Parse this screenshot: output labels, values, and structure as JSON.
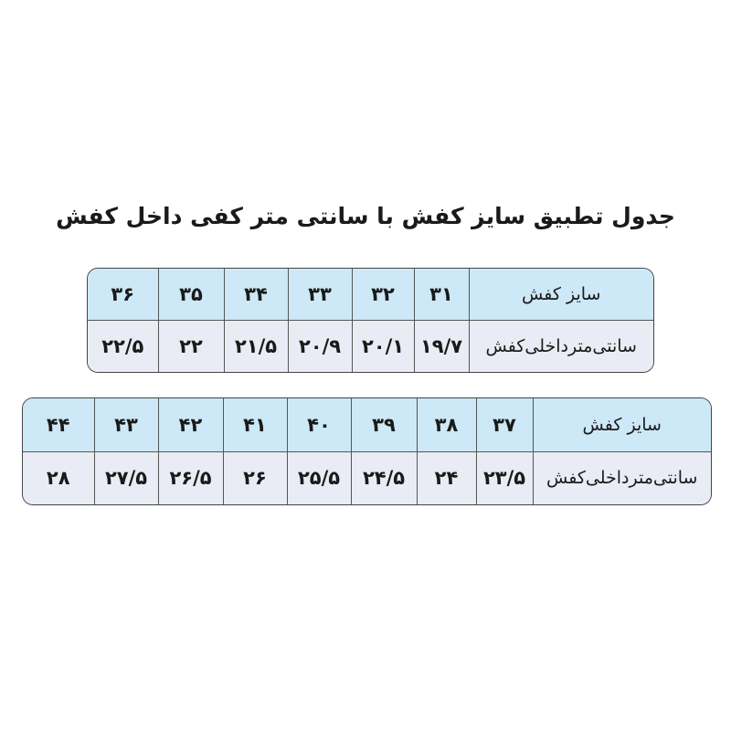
{
  "title": "جدول تطبیق سایز کفش با سانتی متر کفی داخل کفش",
  "colors": {
    "header_row": "#cde8f6",
    "value_row": "#e9ecf4",
    "border": "#444444"
  },
  "tables": [
    {
      "row_labels": [
        "سایز کفش",
        "سانتی‌مترداخلی‌کفش"
      ],
      "sizes": [
        "۳۱",
        "۳۲",
        "۳۳",
        "۳۴",
        "۳۵",
        "۳۶"
      ],
      "cm": [
        "۱۹/۷",
        "۲۰/۱",
        "۲۰/۹",
        "۲۱/۵",
        "۲۲",
        "۲۲/۵"
      ]
    },
    {
      "row_labels": [
        "سایز کفش",
        "سانتی‌مترداخلی‌کفش"
      ],
      "sizes": [
        "۳۷",
        "۳۸",
        "۳۹",
        "۴۰",
        "۴۱",
        "۴۲",
        "۴۳",
        "۴۴"
      ],
      "cm": [
        "۲۳/۵",
        "۲۴",
        "۲۴/۵",
        "۲۵/۵",
        "۲۶",
        "۲۶/۵",
        "۲۷/۵",
        "۲۸"
      ]
    }
  ]
}
